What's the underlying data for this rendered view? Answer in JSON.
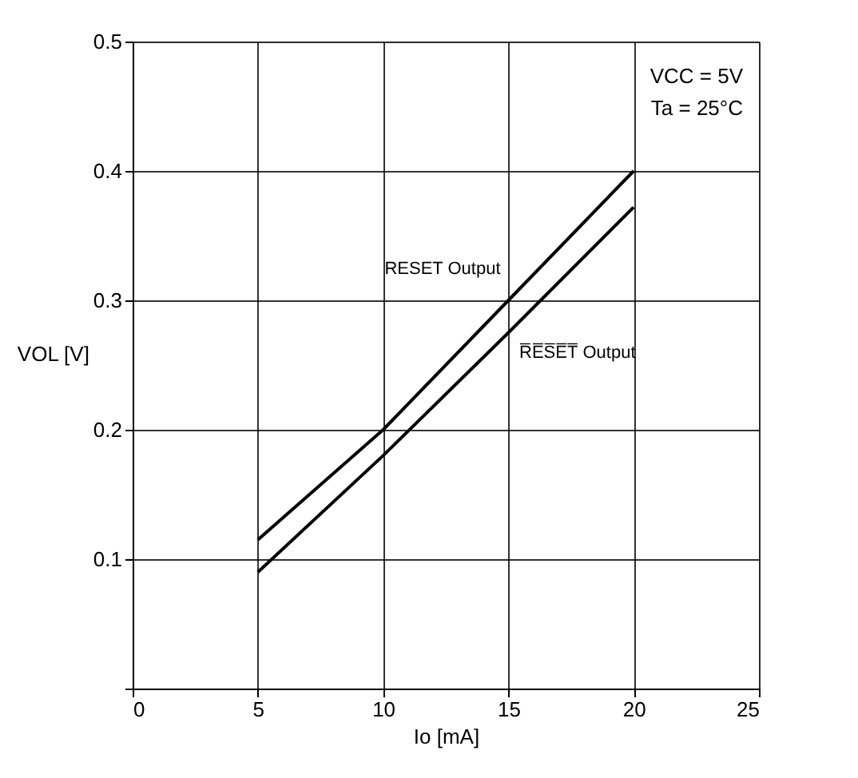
{
  "chart_data": {
    "type": "line",
    "xlabel": "Io [mA]",
    "ylabel": "VOL [V]",
    "xlim": [
      0,
      25
    ],
    "xticks": [
      0,
      5,
      10,
      15,
      20,
      25
    ],
    "ylim": [
      0,
      0.5
    ],
    "yticks": [
      {
        "value": 0,
        "label": null
      },
      0.1,
      0.2,
      0.3,
      0.4,
      0.5
    ],
    "grid": true,
    "marker": "none",
    "line_style": "solid",
    "series": [
      {
        "name": "RESET Output",
        "color": "#000000",
        "x": [
          5,
          10,
          15,
          20
        ],
        "values": [
          0.115,
          0.2,
          0.3,
          0.4
        ]
      },
      {
        "name": "R̅E̅S̅E̅T̅ Output",
        "color": "#000000",
        "x": [
          5,
          10,
          15,
          20
        ],
        "values": [
          0.09,
          0.18,
          0.275,
          0.372
        ]
      }
    ],
    "annotations": [
      "VCC = 5V",
      "Ta = 25°C"
    ]
  }
}
